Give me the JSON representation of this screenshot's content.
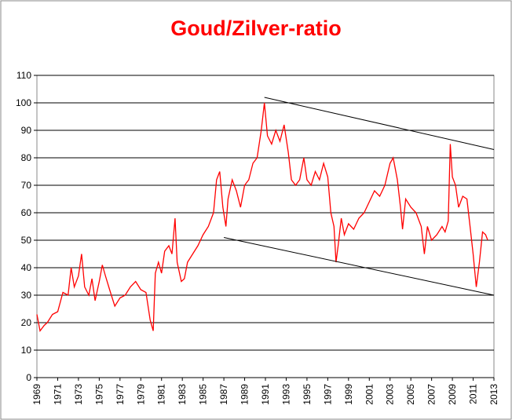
{
  "chart_data": {
    "type": "line",
    "title": "Goud/Zilver-ratio",
    "series": [
      {
        "name": "Goud/Zilver-ratio",
        "color": "#ff0000",
        "x": [
          1969.0,
          1969.3,
          1969.7,
          1970.0,
          1970.5,
          1971.0,
          1971.5,
          1972.0,
          1972.3,
          1972.6,
          1973.0,
          1973.3,
          1973.6,
          1974.0,
          1974.3,
          1974.6,
          1975.0,
          1975.3,
          1975.6,
          1976.0,
          1976.5,
          1977.0,
          1977.5,
          1978.0,
          1978.5,
          1979.0,
          1979.5,
          1979.9,
          1980.2,
          1980.4,
          1980.7,
          1981.0,
          1981.3,
          1981.7,
          1982.0,
          1982.3,
          1982.5,
          1982.9,
          1983.2,
          1983.5,
          1984.0,
          1984.5,
          1985.0,
          1985.5,
          1986.0,
          1986.3,
          1986.6,
          1986.9,
          1987.2,
          1987.4,
          1987.8,
          1988.2,
          1988.6,
          1989.0,
          1989.4,
          1989.8,
          1990.2,
          1990.6,
          1990.9,
          1991.2,
          1991.6,
          1992.0,
          1992.4,
          1992.8,
          1993.2,
          1993.5,
          1993.9,
          1994.3,
          1994.7,
          1995.0,
          1995.4,
          1995.8,
          1996.2,
          1996.6,
          1997.0,
          1997.3,
          1997.6,
          1997.8,
          1998.0,
          1998.3,
          1998.6,
          1999.0,
          1999.5,
          2000.0,
          2000.5,
          2001.0,
          2001.5,
          2002.0,
          2002.5,
          2003.0,
          2003.3,
          2003.7,
          2004.0,
          2004.2,
          2004.5,
          2005.0,
          2005.5,
          2006.0,
          2006.3,
          2006.6,
          2007.0,
          2007.5,
          2008.0,
          2008.3,
          2008.6,
          2008.8,
          2009.0,
          2009.3,
          2009.6,
          2010.0,
          2010.4,
          2010.7,
          2011.0,
          2011.3,
          2011.6,
          2011.9,
          2012.2,
          2012.4
        ],
        "values": [
          23,
          17,
          19,
          20,
          23,
          24,
          31,
          30,
          40,
          33,
          37,
          45,
          33,
          30,
          36,
          28,
          35,
          41,
          37,
          32,
          26,
          29,
          30,
          33,
          35,
          32,
          31,
          21,
          17,
          38,
          42,
          38,
          46,
          48,
          45,
          58,
          42,
          35,
          36,
          42,
          45,
          48,
          52,
          55,
          60,
          72,
          75,
          62,
          55,
          65,
          72,
          68,
          62,
          70,
          72,
          78,
          80,
          90,
          100,
          88,
          85,
          90,
          86,
          92,
          82,
          72,
          70,
          72,
          80,
          72,
          70,
          75,
          72,
          78,
          73,
          60,
          55,
          42,
          48,
          58,
          52,
          56,
          54,
          58,
          60,
          64,
          68,
          66,
          70,
          78,
          80,
          72,
          62,
          54,
          65,
          62,
          60,
          55,
          45,
          55,
          50,
          52,
          55,
          53,
          57,
          85,
          73,
          70,
          62,
          66,
          65,
          55,
          45,
          33,
          42,
          53,
          52,
          50
        ]
      }
    ],
    "trend_lines": [
      {
        "x": [
          1990.9,
          2013
        ],
        "values": [
          102,
          83
        ]
      },
      {
        "x": [
          1987,
          2013
        ],
        "values": [
          51,
          30
        ]
      }
    ],
    "xlim": [
      1969,
      2013
    ],
    "xticks": [
      1969,
      1971,
      1973,
      1975,
      1977,
      1979,
      1981,
      1983,
      1985,
      1987,
      1989,
      1991,
      1993,
      1995,
      1997,
      1999,
      2001,
      2003,
      2005,
      2007,
      2009,
      2011,
      2013
    ],
    "ylim": [
      0,
      110
    ],
    "yticks": [
      0,
      10,
      20,
      30,
      40,
      50,
      60,
      70,
      80,
      90,
      100,
      110
    ],
    "grid": true
  }
}
